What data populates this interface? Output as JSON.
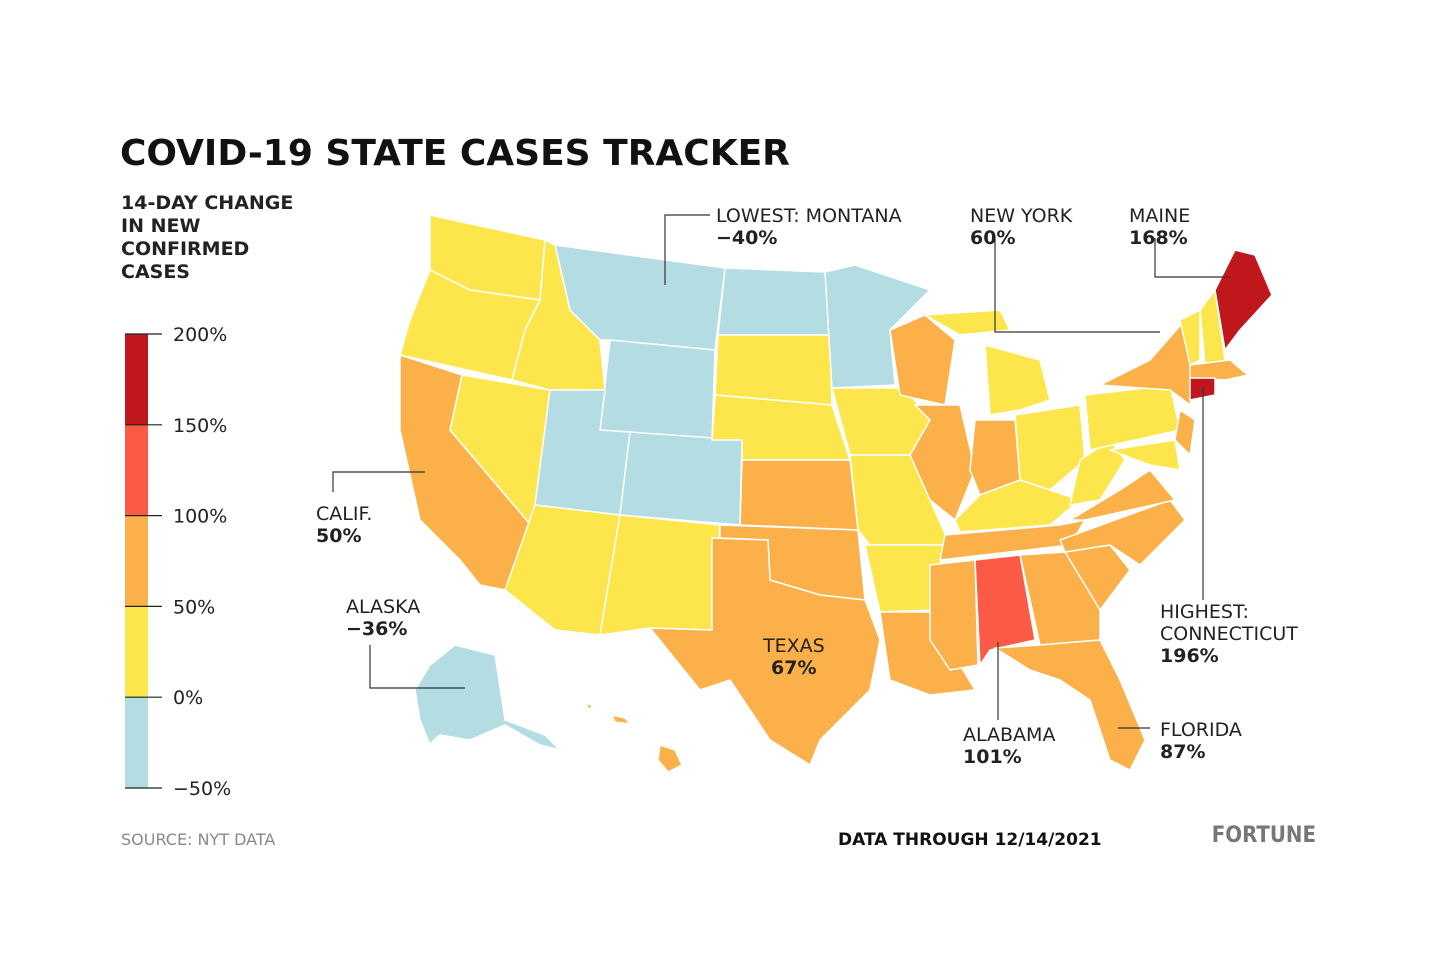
{
  "title": "COVID-19 STATE CASES TRACKER",
  "legend": {
    "title": [
      "14-DAY CHANGE",
      "IN NEW",
      "CONFIRMED",
      "CASES"
    ],
    "ticks": [
      "200%",
      "150%",
      "100%",
      "50%",
      "0%",
      "−50%"
    ],
    "colors": [
      "#c0171c",
      "#fb5a45",
      "#fbb04a",
      "#fde64b",
      "#b3dce3"
    ]
  },
  "annotations": [
    {
      "label": [
        "LOWEST: MONTANA"
      ],
      "value": "−40%"
    },
    {
      "label": [
        "NEW YORK"
      ],
      "value": "60%"
    },
    {
      "label": [
        "MAINE"
      ],
      "value": "168%"
    },
    {
      "label": [
        "CALIF."
      ],
      "value": "50%"
    },
    {
      "label": [
        "ALASKA"
      ],
      "value": "−36%"
    },
    {
      "label": [
        "TEXAS"
      ],
      "value": "67%"
    },
    {
      "label": [
        "HIGHEST:",
        "CONNECTICUT"
      ],
      "value": "196%"
    },
    {
      "label": [
        "ALABAMA"
      ],
      "value": "101%"
    },
    {
      "label": [
        "FLORIDA"
      ],
      "value": "87%"
    }
  ],
  "source": "SOURCE: NYT DATA",
  "date_note": "DATA THROUGH 12/14/2021",
  "brand": "FORTUNE"
}
